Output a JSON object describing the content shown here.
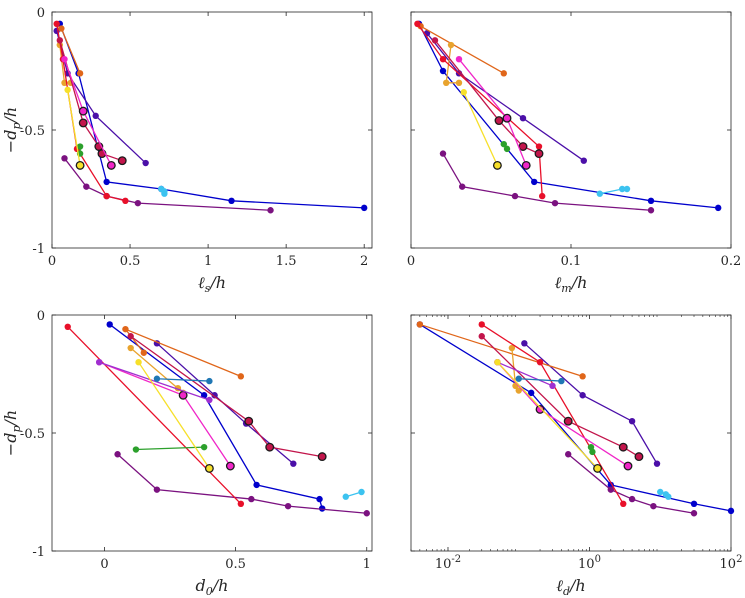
{
  "chart_data": [
    {
      "type": "line",
      "panel": "top-left",
      "xlabel": "ℓ_s/h",
      "ylabel": "−d_p/h",
      "xscale": "linear",
      "xlim": [
        0,
        2.05
      ],
      "ylim": [
        -1,
        0
      ],
      "xticks": [
        0,
        0.5,
        1,
        1.5,
        2
      ],
      "xtick_labels": [
        "0",
        "0.5",
        "1",
        "1.5",
        "2"
      ],
      "yticks": [
        0,
        -0.5,
        -1
      ],
      "ytick_labels": [
        "0",
        "-0.5",
        "-1"
      ],
      "series": [
        {
          "name": "blue",
          "color": "#0000cc",
          "x": [
            0.05,
            0.17,
            0.35,
            0.7,
            1.15,
            2.0
          ],
          "y": [
            -0.05,
            -0.26,
            -0.72,
            -0.75,
            -0.8,
            -0.83
          ]
        },
        {
          "name": "purple",
          "color": "#4b0fa8",
          "x": [
            0.03,
            0.1,
            0.28,
            0.6
          ],
          "y": [
            -0.08,
            -0.26,
            -0.44,
            -0.64
          ]
        },
        {
          "name": "dark purple",
          "color": "#7b1280",
          "x": [
            0.08,
            0.22,
            0.35,
            0.55,
            1.4
          ],
          "y": [
            -0.62,
            -0.74,
            -0.78,
            -0.81,
            -0.84
          ]
        },
        {
          "name": "orange",
          "color": "#e0661a",
          "x": [
            0.06,
            0.18
          ],
          "y": [
            -0.07,
            -0.26
          ]
        },
        {
          "name": "gold",
          "color": "#e8a32e",
          "x": [
            0.05,
            0.08,
            0.12
          ],
          "y": [
            -0.14,
            -0.3,
            -0.3
          ]
        },
        {
          "name": "red",
          "color": "#e8102a",
          "x": [
            0.03,
            0.07,
            0.16,
            0.35,
            0.47
          ],
          "y": [
            -0.05,
            -0.2,
            -0.58,
            -0.78,
            -0.8
          ]
        },
        {
          "name": "crimson",
          "color": "#c2154b",
          "x": [
            0.05,
            0.2,
            0.3,
            0.32,
            0.45
          ],
          "y": [
            -0.12,
            -0.47,
            -0.57,
            -0.6,
            -0.63
          ]
        },
        {
          "name": "magenta",
          "color": "#f026c8",
          "x": [
            0.08,
            0.2,
            0.38
          ],
          "y": [
            -0.2,
            -0.42,
            -0.65
          ]
        },
        {
          "name": "green",
          "color": "#2ca02c",
          "x": [
            0.18,
            0.18
          ],
          "y": [
            -0.57,
            -0.6
          ]
        },
        {
          "name": "cyan",
          "color": "#3cc3f0",
          "x": [
            0.7,
            0.72,
            0.72
          ],
          "y": [
            -0.75,
            -0.76,
            -0.77
          ]
        },
        {
          "name": "yellow",
          "color": "#f7e02a",
          "x": [
            0.1,
            0.18
          ],
          "y": [
            -0.33,
            -0.65
          ]
        }
      ]
    },
    {
      "type": "line",
      "panel": "top-right",
      "xlabel": "ℓ_m/h",
      "ylabel": "",
      "xscale": "linear",
      "xlim": [
        0,
        0.2
      ],
      "ylim": [
        -1,
        0
      ],
      "xticks": [
        0,
        0.1,
        0.2
      ],
      "xtick_labels": [
        "0",
        "0.1",
        "0.2"
      ],
      "yticks": [
        0,
        -0.5,
        -1
      ],
      "ytick_labels": [
        "",
        "",
        ""
      ],
      "series": [
        {
          "name": "blue",
          "color": "#0000cc",
          "x": [
            0.005,
            0.02,
            0.077,
            0.15,
            0.192
          ],
          "y": [
            -0.05,
            -0.25,
            -0.72,
            -0.8,
            -0.83
          ]
        },
        {
          "name": "purple",
          "color": "#4b0fa8",
          "x": [
            0.01,
            0.03,
            0.07,
            0.108
          ],
          "y": [
            -0.09,
            -0.26,
            -0.45,
            -0.63
          ]
        },
        {
          "name": "dark purple",
          "color": "#7b1280",
          "x": [
            0.02,
            0.032,
            0.065,
            0.09,
            0.15
          ],
          "y": [
            -0.6,
            -0.74,
            -0.78,
            -0.81,
            -0.84
          ]
        },
        {
          "name": "orange",
          "color": "#e0661a",
          "x": [
            0.006,
            0.058
          ],
          "y": [
            -0.06,
            -0.26
          ]
        },
        {
          "name": "gold",
          "color": "#e8a32e",
          "x": [
            0.025,
            0.022,
            0.03
          ],
          "y": [
            -0.14,
            -0.3,
            -0.3
          ]
        },
        {
          "name": "red",
          "color": "#e8102a",
          "x": [
            0.004,
            0.02,
            0.08,
            0.082
          ],
          "y": [
            -0.05,
            -0.2,
            -0.57,
            -0.78
          ]
        },
        {
          "name": "crimson",
          "color": "#c2154b",
          "x": [
            0.015,
            0.055,
            0.07,
            0.08
          ],
          "y": [
            -0.12,
            -0.46,
            -0.57,
            -0.6
          ]
        },
        {
          "name": "magenta",
          "color": "#f026c8",
          "x": [
            0.03,
            0.06,
            0.072
          ],
          "y": [
            -0.2,
            -0.45,
            -0.65
          ]
        },
        {
          "name": "green",
          "color": "#2ca02c",
          "x": [
            0.058,
            0.06
          ],
          "y": [
            -0.56,
            -0.58
          ]
        },
        {
          "name": "cyan",
          "color": "#3cc3f0",
          "x": [
            0.118,
            0.132,
            0.135
          ],
          "y": [
            -0.77,
            -0.75,
            -0.75
          ]
        },
        {
          "name": "yellow",
          "color": "#f7e02a",
          "x": [
            0.033,
            0.054
          ],
          "y": [
            -0.34,
            -0.65
          ]
        }
      ]
    },
    {
      "type": "line",
      "panel": "bottom-left",
      "xlabel": "d_0/h",
      "ylabel": "−d_p/h",
      "xscale": "linear",
      "xlim": [
        -0.2,
        1.02
      ],
      "ylim": [
        -1,
        0
      ],
      "xticks": [
        0,
        0.5,
        1
      ],
      "xtick_labels": [
        "0",
        "0.5",
        "1"
      ],
      "yticks": [
        0,
        -0.5,
        -1
      ],
      "ytick_labels": [
        "0",
        "-0.5",
        "-1"
      ],
      "series": [
        {
          "name": "blue",
          "color": "#0000cc",
          "x": [
            0.02,
            0.38,
            0.58,
            0.82,
            0.83
          ],
          "y": [
            -0.04,
            -0.34,
            -0.72,
            -0.78,
            -0.82
          ]
        },
        {
          "name": "purple",
          "color": "#4b0fa8",
          "x": [
            0.2,
            0.42,
            0.54,
            0.72
          ],
          "y": [
            -0.12,
            -0.34,
            -0.46,
            -0.63
          ]
        },
        {
          "name": "dark purple",
          "color": "#7b1280",
          "x": [
            0.05,
            0.2,
            0.56,
            0.7,
            1.0
          ],
          "y": [
            -0.59,
            -0.74,
            -0.78,
            -0.81,
            -0.84
          ]
        },
        {
          "name": "orange",
          "color": "#e0661a",
          "x": [
            0.15,
            0.08,
            0.52
          ],
          "y": [
            -0.16,
            -0.06,
            -0.26
          ]
        },
        {
          "name": "gold",
          "color": "#e8a32e",
          "x": [
            0.1,
            0.3,
            0.28
          ],
          "y": [
            -0.14,
            -0.33,
            -0.31
          ]
        },
        {
          "name": "red",
          "color": "#e8102a",
          "x": [
            -0.14,
            0.52
          ],
          "y": [
            -0.05,
            -0.8
          ]
        },
        {
          "name": "crimson",
          "color": "#c2154b",
          "x": [
            0.1,
            0.55,
            0.63,
            0.83
          ],
          "y": [
            -0.09,
            -0.45,
            -0.56,
            -0.6
          ]
        },
        {
          "name": "magenta",
          "color": "#f026c8",
          "x": [
            -0.02,
            0.3,
            0.48
          ],
          "y": [
            -0.2,
            -0.34,
            -0.64
          ]
        },
        {
          "name": "violet",
          "color": "#9f2fd0",
          "x": [
            -0.02,
            0.4
          ],
          "y": [
            -0.2,
            -0.36
          ]
        },
        {
          "name": "green",
          "color": "#2ca02c",
          "x": [
            0.12,
            0.38
          ],
          "y": [
            -0.57,
            -0.56
          ]
        },
        {
          "name": "cyan",
          "color": "#3cc3f0",
          "x": [
            0.92,
            0.98
          ],
          "y": [
            -0.77,
            -0.75
          ]
        },
        {
          "name": "teal",
          "color": "#1f77b4",
          "x": [
            0.2,
            0.4
          ],
          "y": [
            -0.27,
            -0.28
          ]
        },
        {
          "name": "yellow",
          "color": "#f7e02a",
          "x": [
            0.13,
            0.4
          ],
          "y": [
            -0.2,
            -0.65
          ]
        }
      ]
    },
    {
      "type": "line",
      "panel": "bottom-right",
      "xlabel": "ℓ_d/h",
      "ylabel": "",
      "xscale": "log",
      "xlim": [
        0.003,
        100
      ],
      "ylim": [
        -1,
        0
      ],
      "xticks": [
        0.01,
        1,
        100
      ],
      "xtick_labels": [
        "10-2",
        "100",
        "102"
      ],
      "yticks": [
        0,
        -0.5,
        -1
      ],
      "ytick_labels": [
        "",
        "",
        ""
      ],
      "series": [
        {
          "name": "blue",
          "color": "#0000cc",
          "x": [
            0.004,
            0.15,
            2,
            30,
            100
          ],
          "y": [
            -0.04,
            -0.33,
            -0.72,
            -0.8,
            -0.83
          ]
        },
        {
          "name": "purple",
          "color": "#4b0fa8",
          "x": [
            0.12,
            0.8,
            4,
            9
          ],
          "y": [
            -0.12,
            -0.34,
            -0.45,
            -0.63
          ]
        },
        {
          "name": "dark purple",
          "color": "#7b1280",
          "x": [
            0.5,
            2,
            4,
            8,
            30
          ],
          "y": [
            -0.59,
            -0.74,
            -0.78,
            -0.81,
            -0.84
          ]
        },
        {
          "name": "orange",
          "color": "#e0661a",
          "x": [
            0.004,
            0.8
          ],
          "y": [
            -0.04,
            -0.26
          ]
        },
        {
          "name": "gold",
          "color": "#e8a32e",
          "x": [
            0.08,
            0.09,
            0.1
          ],
          "y": [
            -0.14,
            -0.3,
            -0.32
          ]
        },
        {
          "name": "red",
          "color": "#e8102a",
          "x": [
            0.03,
            0.2,
            3
          ],
          "y": [
            -0.04,
            -0.2,
            -0.8
          ]
        },
        {
          "name": "crimson",
          "color": "#c2154b",
          "x": [
            0.03,
            0.5,
            3,
            5
          ],
          "y": [
            -0.09,
            -0.45,
            -0.56,
            -0.6
          ]
        },
        {
          "name": "magenta",
          "color": "#f026c8",
          "x": [
            0.05,
            0.2,
            3.5
          ],
          "y": [
            -0.2,
            -0.4,
            -0.64
          ]
        },
        {
          "name": "violet",
          "color": "#9f2fd0",
          "x": [
            0.05,
            0.3
          ],
          "y": [
            -0.2,
            -0.3
          ]
        },
        {
          "name": "green",
          "color": "#2ca02c",
          "x": [
            1.05,
            1.1
          ],
          "y": [
            -0.56,
            -0.58
          ]
        },
        {
          "name": "cyan",
          "color": "#3cc3f0",
          "x": [
            10,
            12,
            13
          ],
          "y": [
            -0.75,
            -0.76,
            -0.77
          ]
        },
        {
          "name": "teal",
          "color": "#1f77b4",
          "x": [
            0.1,
            0.4
          ],
          "y": [
            -0.27,
            -0.28
          ]
        },
        {
          "name": "yellow",
          "color": "#f7e02a",
          "x": [
            0.05,
            1.3
          ],
          "y": [
            -0.2,
            -0.65
          ]
        }
      ]
    }
  ]
}
